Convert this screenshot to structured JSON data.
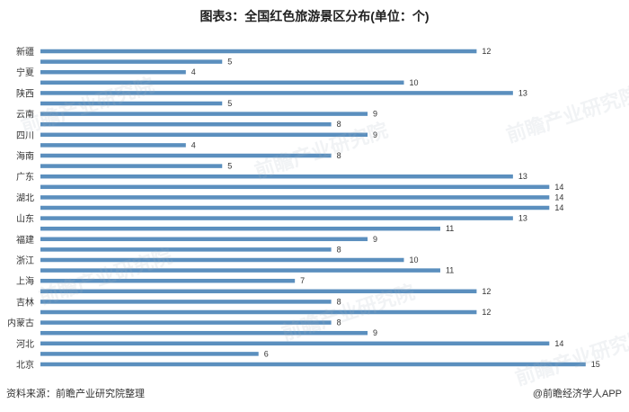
{
  "chart_data": {
    "type": "bar",
    "orientation": "horizontal",
    "title": "图表3：全国红色旅游景区分布(单位：个)",
    "bar_color": "#5b8fbe",
    "categories": [
      "新疆",
      "",
      "宁夏",
      "",
      "陕西",
      "",
      "云南",
      "",
      "四川",
      "",
      "海南",
      "",
      "广东",
      "",
      "湖北",
      "",
      "山东",
      "",
      "福建",
      "",
      "浙江",
      "",
      "上海",
      "",
      "吉林",
      "",
      "内蒙古",
      "",
      "河北",
      "",
      "北京"
    ],
    "values": [
      12,
      5,
      4,
      10,
      13,
      5,
      9,
      8,
      9,
      4,
      8,
      5,
      13,
      14,
      14,
      14,
      13,
      11,
      9,
      8,
      10,
      11,
      7,
      12,
      8,
      12,
      8,
      9,
      14,
      6,
      15
    ],
    "xlim": [
      0,
      15.5
    ],
    "grid": false,
    "legend": "none"
  },
  "footer": {
    "source": "资料来源：前瞻产业研究院整理",
    "brand": "@前瞻经济学人APP"
  },
  "watermark": "前瞻产业研究院"
}
